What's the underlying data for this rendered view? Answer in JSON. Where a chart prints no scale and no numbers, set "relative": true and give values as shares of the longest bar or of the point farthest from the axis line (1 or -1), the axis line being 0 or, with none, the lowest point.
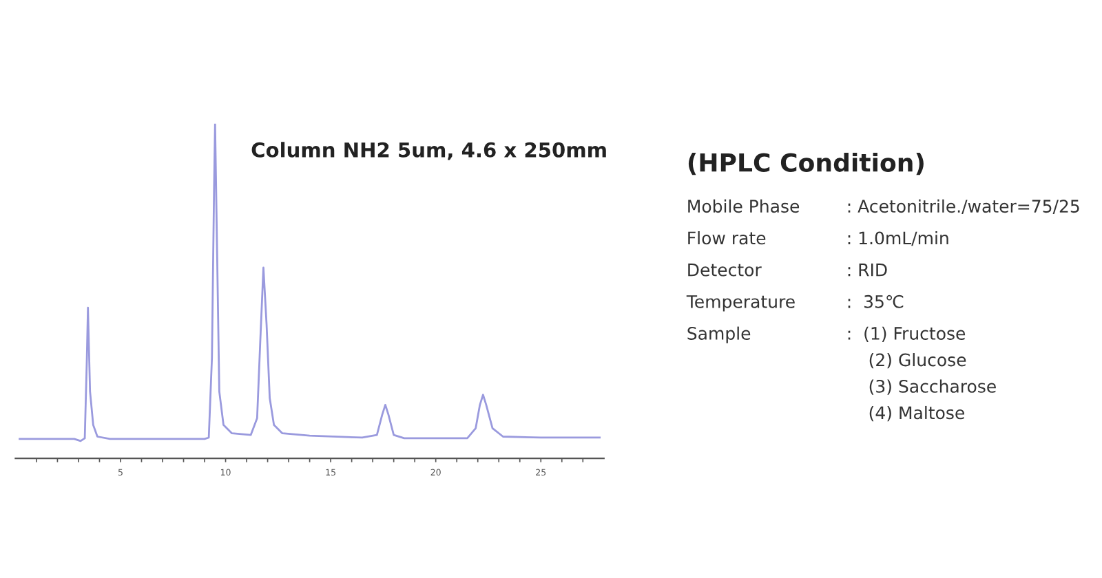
{
  "chart_data": {
    "type": "line",
    "relative": true,
    "title": "Column NH2 5um, 4.6 x 250mm",
    "x": [
      0.2,
      2.8,
      3.1,
      3.3,
      3.4,
      3.45,
      3.55,
      3.7,
      3.9,
      4.5,
      9.0,
      9.2,
      9.35,
      9.45,
      9.5,
      9.6,
      9.7,
      9.9,
      10.3,
      11.2,
      11.5,
      11.65,
      11.8,
      11.95,
      12.1,
      12.3,
      12.7,
      14,
      16.5,
      17.2,
      17.45,
      17.6,
      17.75,
      18.0,
      18.5,
      21.5,
      21.9,
      22.1,
      22.25,
      22.4,
      22.7,
      23.2,
      25,
      27.8
    ],
    "series": [
      {
        "color": "#9a9ade",
        "values": [
          0.058,
          0.058,
          0.052,
          0.06,
          0.3,
          0.45,
          0.2,
          0.1,
          0.065,
          0.058,
          0.058,
          0.062,
          0.3,
          0.8,
          1.0,
          0.6,
          0.2,
          0.1,
          0.075,
          0.07,
          0.12,
          0.35,
          0.57,
          0.4,
          0.18,
          0.1,
          0.075,
          0.068,
          0.062,
          0.07,
          0.13,
          0.16,
          0.13,
          0.07,
          0.06,
          0.06,
          0.09,
          0.16,
          0.19,
          0.16,
          0.09,
          0.065,
          0.062,
          0.062
        ]
      }
    ],
    "xlim": [
      0,
      28
    ],
    "xticks": [
      {
        "value": 1,
        "label": null
      },
      {
        "value": 2,
        "label": null
      },
      {
        "value": 3,
        "label": null
      },
      {
        "value": 4,
        "label": null
      },
      5,
      {
        "value": 6,
        "label": null
      },
      {
        "value": 7,
        "label": null
      },
      {
        "value": 8,
        "label": null
      },
      {
        "value": 9,
        "label": null
      },
      10,
      {
        "value": 11,
        "label": null
      },
      {
        "value": 12,
        "label": null
      },
      {
        "value": 13,
        "label": null
      },
      {
        "value": 14,
        "label": null
      },
      15,
      {
        "value": 16,
        "label": null
      },
      {
        "value": 17,
        "label": null
      },
      {
        "value": 18,
        "label": null
      },
      {
        "value": 19,
        "label": null
      },
      20,
      {
        "value": 21,
        "label": null
      },
      {
        "value": 22,
        "label": null
      },
      {
        "value": 23,
        "label": null
      },
      {
        "value": 24,
        "label": null
      },
      25,
      {
        "value": 26,
        "label": null
      },
      {
        "value": 27,
        "label": null
      }
    ],
    "grid": false,
    "legend": false,
    "marker": "none",
    "line_style": "solid",
    "annotations": [
      "(HPLC Condition)",
      "Mobile Phase",
      ": Acetonitrile./water=75/25",
      "Flow rate",
      ": 1.0mL/min",
      "Detector",
      ": RID",
      "Temperature",
      ":  35℃",
      "Sample",
      ":  (1) Fructose\n    (2) Glucose\n    (3) Saccharose\n    (4) Maltose"
    ]
  }
}
